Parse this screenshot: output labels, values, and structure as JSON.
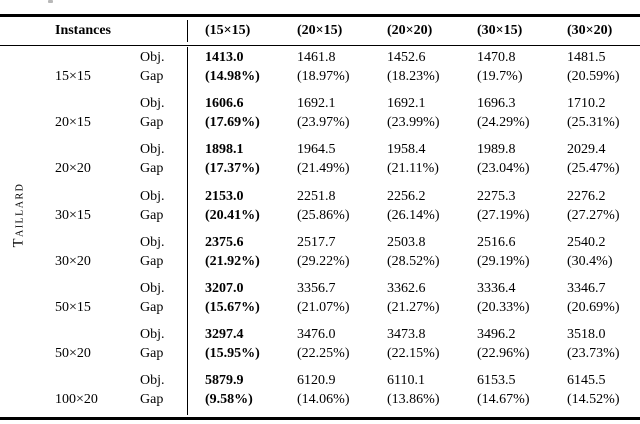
{
  "page": {
    "background": "#ffffff",
    "text_color": "#000000",
    "rule_color": "#000000"
  },
  "table": {
    "group_label": "Taillard",
    "header": {
      "instances_label": "Instances",
      "columns": [
        "(15×15)",
        "(20×15)",
        "(20×20)",
        "(30×15)",
        "(30×20)"
      ]
    },
    "metric_labels": {
      "obj": "Obj.",
      "gap": "Gap"
    },
    "best_column_index": 0,
    "rows": [
      {
        "instance": "15×15",
        "obj": [
          "1413.0",
          "1461.8",
          "1452.6",
          "1470.8",
          "1481.5"
        ],
        "gap": [
          "(14.98%)",
          "(18.97%)",
          "(18.23%)",
          "(19.7%)",
          "(20.59%)"
        ]
      },
      {
        "instance": "20×15",
        "obj": [
          "1606.6",
          "1692.1",
          "1692.1",
          "1696.3",
          "1710.2"
        ],
        "gap": [
          "(17.69%)",
          "(23.97%)",
          "(23.99%)",
          "(24.29%)",
          "(25.31%)"
        ]
      },
      {
        "instance": "20×20",
        "obj": [
          "1898.1",
          "1964.5",
          "1958.4",
          "1989.8",
          "2029.4"
        ],
        "gap": [
          "(17.37%)",
          "(21.49%)",
          "(21.11%)",
          "(23.04%)",
          "(25.47%)"
        ]
      },
      {
        "instance": "30×15",
        "obj": [
          "2153.0",
          "2251.8",
          "2256.2",
          "2275.3",
          "2276.2"
        ],
        "gap": [
          "(20.41%)",
          "(25.86%)",
          "(26.14%)",
          "(27.19%)",
          "(27.27%)"
        ]
      },
      {
        "instance": "30×20",
        "obj": [
          "2375.6",
          "2517.7",
          "2503.8",
          "2516.6",
          "2540.2"
        ],
        "gap": [
          "(21.92%)",
          "(29.22%)",
          "(28.52%)",
          "(29.19%)",
          "(30.4%)"
        ]
      },
      {
        "instance": "50×15",
        "obj": [
          "3207.0",
          "3356.7",
          "3362.6",
          "3336.4",
          "3346.7"
        ],
        "gap": [
          "(15.67%)",
          "(21.07%)",
          "(21.27%)",
          "(20.33%)",
          "(20.69%)"
        ]
      },
      {
        "instance": "50×20",
        "obj": [
          "3297.4",
          "3476.0",
          "3473.8",
          "3496.2",
          "3518.0"
        ],
        "gap": [
          "(15.95%)",
          "(22.25%)",
          "(22.15%)",
          "(22.96%)",
          "(23.73%)"
        ]
      },
      {
        "instance": "100×20",
        "obj": [
          "5879.9",
          "6120.9",
          "6110.1",
          "6153.5",
          "6145.5"
        ],
        "gap": [
          "(9.58%)",
          "(14.06%)",
          "(13.86%)",
          "(14.67%)",
          "(14.52%)"
        ]
      }
    ]
  }
}
